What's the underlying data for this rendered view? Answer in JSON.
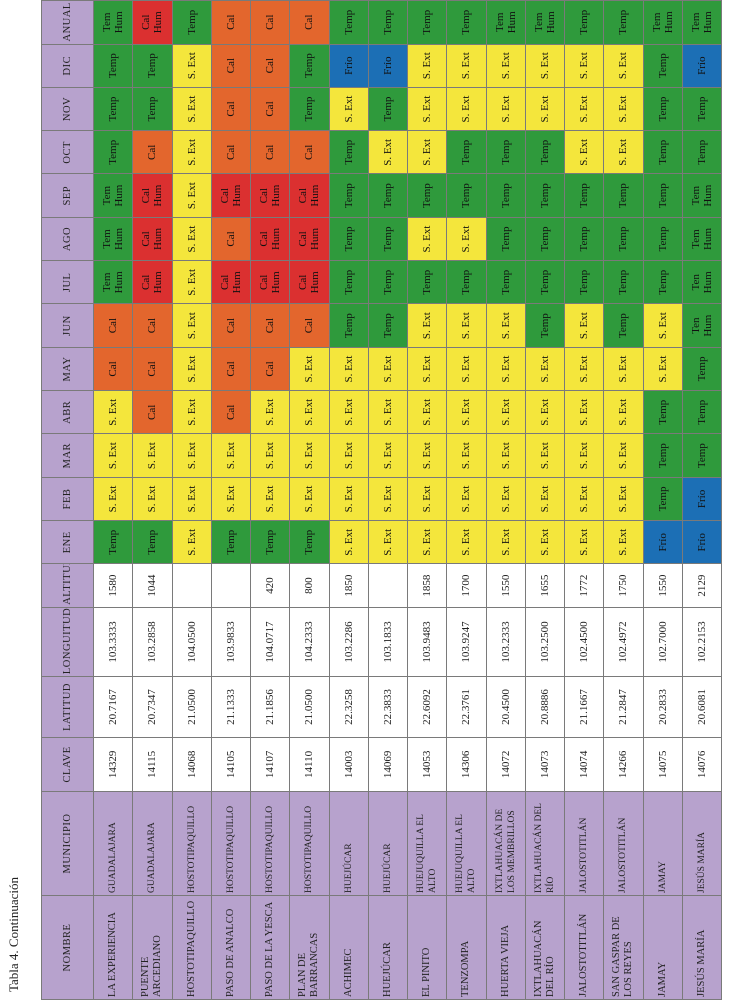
{
  "caption": "Tabla 4. Continuación",
  "headers": [
    "NOMBRE",
    "MUNICIPIO",
    "CLAVE",
    "LATITUD",
    "LONGUITUD",
    "ALTITUD",
    "ENE",
    "FEB",
    "MAR",
    "ABR",
    "MAY",
    "JUN",
    "JUL",
    "AGO",
    "SEP",
    "OCT",
    "NOV",
    "DIC",
    "ANUAL"
  ],
  "colors": {
    "Temp": "#2f9a3c",
    "S. Ext": "#f4e63c",
    "Cal": "#e3662d",
    "Cal Hum": "#db3030",
    "Tem Hum": "#2f9a3c",
    "Ten Hum": "#2f9a3c",
    "Frío": "#1c6fb5"
  },
  "rows": [
    {
      "nombre": "LA EXPERIENCIA",
      "municipio": "GUADALAJARA",
      "clave": "14329",
      "latitud": "20.7167",
      "longitud": "103.3333",
      "altitud": "1580",
      "months": [
        "Temp",
        "S. Ext",
        "S. Ext",
        "S. Ext",
        "Cal",
        "Cal",
        "Tem Hum",
        "Tem Hum",
        "Tem Hum",
        "Temp",
        "Temp",
        "Temp",
        "Tem Hum"
      ]
    },
    {
      "nombre": "PUENTE ARCEDIANO",
      "municipio": "GUADALAJARA",
      "clave": "14115",
      "latitud": "20.7347",
      "longitud": "103.2858",
      "altitud": "1044",
      "months": [
        "Temp",
        "S. Ext",
        "S. Ext",
        "Cal",
        "Cal",
        "Cal",
        "Cal Hum",
        "Cal Hum",
        "Cal Hum",
        "Cal",
        "Temp",
        "Temp",
        "Cal Hum"
      ]
    },
    {
      "nombre": "HOSTOTIPAQUILLO",
      "municipio": "HOSTOTIPAQUILLO",
      "clave": "14068",
      "latitud": "21.0500",
      "longitud": "104.0500",
      "altitud": "",
      "months": [
        "S. Ext",
        "S. Ext",
        "S. Ext",
        "S. Ext",
        "S. Ext",
        "S. Ext",
        "S. Ext",
        "S. Ext",
        "S. Ext",
        "S. Ext",
        "S. Ext",
        "S. Ext",
        "Temp"
      ]
    },
    {
      "nombre": "PASO DE ANALCO",
      "municipio": "HOSTOTIPAQUILLO",
      "clave": "14105",
      "latitud": "21.1333",
      "longitud": "103.9833",
      "altitud": "",
      "months": [
        "Temp",
        "S. Ext",
        "S. Ext",
        "Cal",
        "Cal",
        "Cal",
        "Cal Hum",
        "Cal",
        "Cal Hum",
        "Cal",
        "Cal",
        "Cal",
        "Cal"
      ]
    },
    {
      "nombre": "PASO DE LA YESCA",
      "municipio": "HOSTOTIPAQUILLO",
      "clave": "14107",
      "latitud": "21.1856",
      "longitud": "104.0717",
      "altitud": "420",
      "months": [
        "Temp",
        "S. Ext",
        "S. Ext",
        "S. Ext",
        "Cal",
        "Cal",
        "Cal Hum",
        "Cal Hum",
        "Cal Hum",
        "Cal",
        "Cal",
        "Cal",
        "Cal"
      ]
    },
    {
      "nombre": "PLAN DE BARRANCAS",
      "municipio": "HOSTOTIPAQUILLO",
      "clave": "14110",
      "latitud": "21.0500",
      "longitud": "104.2333",
      "altitud": "800",
      "months": [
        "Temp",
        "S. Ext",
        "S. Ext",
        "S. Ext",
        "S. Ext",
        "Cal",
        "Cal Hum",
        "Cal Hum",
        "Cal Hum",
        "Cal",
        "Temp",
        "Temp",
        "Cal"
      ]
    },
    {
      "nombre": "ACHIMEC",
      "municipio": "HUEJÚCAR",
      "clave": "14003",
      "latitud": "22.3258",
      "longitud": "103.2286",
      "altitud": "1850",
      "months": [
        "S. Ext",
        "S. Ext",
        "S. Ext",
        "S. Ext",
        "S. Ext",
        "Temp",
        "Temp",
        "Temp",
        "Temp",
        "Temp",
        "S. Ext",
        "Frío",
        "Temp"
      ]
    },
    {
      "nombre": "HUEJÚCAR",
      "municipio": "HUEJÚCAR",
      "clave": "14069",
      "latitud": "22.3833",
      "longitud": "103.1833",
      "altitud": "",
      "months": [
        "S. Ext",
        "S. Ext",
        "S. Ext",
        "S. Ext",
        "S. Ext",
        "Temp",
        "Temp",
        "Temp",
        "Temp",
        "S. Ext",
        "Temp",
        "Frío",
        "Temp"
      ]
    },
    {
      "nombre": "EL PINITO",
      "municipio": "HUEJUQUILLA EL ALTO",
      "clave": "14053",
      "latitud": "22.6092",
      "longitud": "103.9483",
      "altitud": "1858",
      "months": [
        "S. Ext",
        "S. Ext",
        "S. Ext",
        "S. Ext",
        "S. Ext",
        "S. Ext",
        "Temp",
        "S. Ext",
        "Temp",
        "S. Ext",
        "S. Ext",
        "S. Ext",
        "Temp"
      ]
    },
    {
      "nombre": "TENZOMPA",
      "municipio": "HUEJUQUILLA EL ALTO",
      "clave": "14306",
      "latitud": "22.3761",
      "longitud": "103.9247",
      "altitud": "1700",
      "months": [
        "S. Ext",
        "S. Ext",
        "S. Ext",
        "S. Ext",
        "S. Ext",
        "S. Ext",
        "Temp",
        "S. Ext",
        "Temp",
        "Temp",
        "S. Ext",
        "S. Ext",
        "Temp"
      ]
    },
    {
      "nombre": "HUERTA VIEJA",
      "municipio": "IXTLAHUACÁN DE LOS MEMBRILLOS",
      "clave": "14072",
      "latitud": "20.4500",
      "longitud": "103.2333",
      "altitud": "1550",
      "months": [
        "S. Ext",
        "S. Ext",
        "S. Ext",
        "S. Ext",
        "S. Ext",
        "S. Ext",
        "Temp",
        "Temp",
        "Temp",
        "Temp",
        "S. Ext",
        "S. Ext",
        "Tem Hum"
      ]
    },
    {
      "nombre": "IXTLAHUACÁN DEL RÍO",
      "municipio": "IXTLAHUACÁN DEL RÍO",
      "clave": "14073",
      "latitud": "20.8886",
      "longitud": "103.2500",
      "altitud": "1655",
      "months": [
        "S. Ext",
        "S. Ext",
        "S. Ext",
        "S. Ext",
        "S. Ext",
        "Temp",
        "Temp",
        "Temp",
        "Temp",
        "Temp",
        "S. Ext",
        "S. Ext",
        "Tem Hum"
      ]
    },
    {
      "nombre": "JALOSTOTITLÁN",
      "municipio": "JALOSTOTITLÁN",
      "clave": "14074",
      "latitud": "21.1667",
      "longitud": "102.4500",
      "altitud": "1772",
      "months": [
        "S. Ext",
        "S. Ext",
        "S. Ext",
        "S. Ext",
        "S. Ext",
        "S. Ext",
        "Temp",
        "Temp",
        "Temp",
        "S. Ext",
        "S. Ext",
        "S. Ext",
        "Temp"
      ]
    },
    {
      "nombre": "SAN GASPAR DE LOS REYES",
      "municipio": "JALOSTOTITLÁN",
      "clave": "14266",
      "latitud": "21.2847",
      "longitud": "102.4972",
      "altitud": "1750",
      "months": [
        "S. Ext",
        "S. Ext",
        "S. Ext",
        "S. Ext",
        "S. Ext",
        "Temp",
        "Temp",
        "Temp",
        "Temp",
        "S. Ext",
        "S. Ext",
        "S. Ext",
        "Temp"
      ]
    },
    {
      "nombre": "JAMAY",
      "municipio": "JAMAY",
      "clave": "14075",
      "latitud": "20.2833",
      "longitud": "102.7000",
      "altitud": "1550",
      "months": [
        "Frío",
        "Temp",
        "Temp",
        "Temp",
        "S. Ext",
        "S. Ext",
        "Temp",
        "Temp",
        "Temp",
        "Temp",
        "Temp",
        "Temp",
        "Tem Hum"
      ]
    },
    {
      "nombre": "JESÚS MARÍA",
      "municipio": "JESÚS MARÍA",
      "clave": "14076",
      "latitud": "20.6081",
      "longitud": "102.2153",
      "altitud": "2129",
      "months": [
        "Frío",
        "Frío",
        "Temp",
        "Temp",
        "Temp",
        "Ten Hum",
        "Ten Hum",
        "Tem Hum",
        "Tem Hum",
        "Temp",
        "Temp",
        "Frío",
        "Tem Hum"
      ]
    }
  ]
}
